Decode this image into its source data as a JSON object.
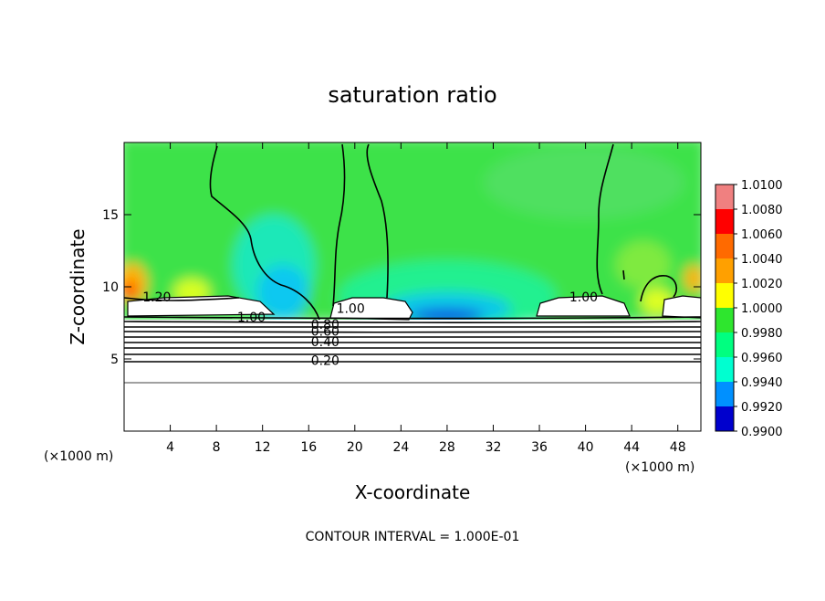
{
  "chart_data": {
    "type": "heatmap",
    "title": "saturation ratio",
    "xlabel": "X-coordinate",
    "ylabel": "Z-coordinate",
    "x_unit": "(×1000 m)",
    "xlim": [
      0,
      50
    ],
    "ylim": [
      0,
      20
    ],
    "x_ticks": [
      4,
      8,
      12,
      16,
      20,
      24,
      28,
      32,
      36,
      40,
      44,
      48
    ],
    "y_ticks": [
      5,
      10,
      15
    ],
    "colorbar": {
      "levels": [
        "1.0100",
        "1.0080",
        "1.0060",
        "1.0040",
        "1.0020",
        "1.0000",
        "0.9980",
        "0.9960",
        "0.9940",
        "0.9920",
        "0.9900"
      ],
      "colors": [
        "#f08080",
        "#ff0000",
        "#ff6a00",
        "#ffa000",
        "#ffff00",
        "#2ee62e",
        "#00ff80",
        "#00ffd0",
        "#0090ff",
        "#0000cd",
        "#6a00aa"
      ]
    },
    "contour_labels": [
      {
        "text": "1.20",
        "x": 1.6,
        "y": 9.0
      },
      {
        "text": "1.00",
        "x": 9.8,
        "y": 7.6
      },
      {
        "text": "1.00",
        "x": 18.4,
        "y": 8.2
      },
      {
        "text": "1.00",
        "x": 38.6,
        "y": 9.0
      },
      {
        "text": "0.80",
        "x": 16.2,
        "y": 7.1
      },
      {
        "text": "0.60",
        "x": 16.2,
        "y": 6.6
      },
      {
        "text": "0.40",
        "x": 16.2,
        "y": 5.9
      },
      {
        "text": "0.20",
        "x": 16.2,
        "y": 4.6
      }
    ],
    "annotation": "CONTOUR INTERVAL = 1.000E-01"
  }
}
